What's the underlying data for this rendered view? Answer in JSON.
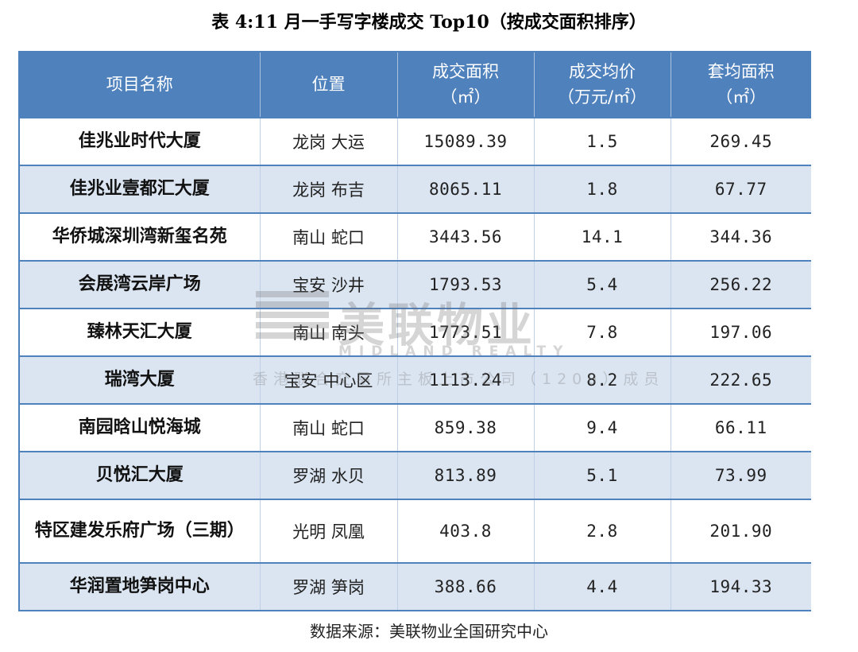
{
  "title": "表 4:11 月一手写字楼成交 Top10（按成交面积排序）",
  "headers": {
    "name": "项目名称",
    "location": "位置",
    "area": "成交面积",
    "area_unit": "（㎡）",
    "price": "成交均价",
    "price_unit": "（万元/㎡）",
    "avg_area": "套均面积",
    "avg_area_unit": "（㎡）"
  },
  "rows": [
    {
      "name": "佳兆业时代大厦",
      "location": "龙岗  大运",
      "area": "15089.39",
      "price": "1.5",
      "avg_area": "269.45"
    },
    {
      "name": "佳兆业壹都汇大厦",
      "location": "龙岗  布吉",
      "area": "8065.11",
      "price": "1.8",
      "avg_area": "67.77"
    },
    {
      "name": "华侨城深圳湾新玺名苑",
      "location": "南山  蛇口",
      "area": "3443.56",
      "price": "14.1",
      "avg_area": "344.36"
    },
    {
      "name": "会展湾云岸广场",
      "location": "宝安  沙井",
      "area": "1793.53",
      "price": "5.4",
      "avg_area": "256.22"
    },
    {
      "name": "臻林天汇大厦",
      "location": "南山  南头",
      "area": "1773.51",
      "price": "7.8",
      "avg_area": "197.06"
    },
    {
      "name": "瑞湾大厦",
      "location": "宝安  中心区",
      "area": "1113.24",
      "price": "8.2",
      "avg_area": "222.65"
    },
    {
      "name": "南园晗山悦海城",
      "location": "南山  蛇口",
      "area": "859.38",
      "price": "9.4",
      "avg_area": "66.11"
    },
    {
      "name": "贝悦汇大厦",
      "location": "罗湖  水贝",
      "area": "813.89",
      "price": "5.1",
      "avg_area": "73.99"
    },
    {
      "name": "特区建发乐府广场（三期）",
      "location": "光明  凤凰",
      "area": "403.8",
      "price": "2.8",
      "avg_area": "201.90"
    },
    {
      "name": "华润置地笋岗中心",
      "location": "罗湖  笋岗",
      "area": "388.66",
      "price": "4.4",
      "avg_area": "194.33"
    }
  ],
  "source": "数据来源：美联物业全国研究中心",
  "watermark": {
    "brand": "美联物业",
    "brand_en": "MIDLAND REALTY",
    "line": "香港联合交易所主板上市公司（1200）成员"
  },
  "colors": {
    "header_bg": "#4f81bd",
    "alt_row_bg": "#dbe5f1",
    "border": "#4f81bd"
  }
}
